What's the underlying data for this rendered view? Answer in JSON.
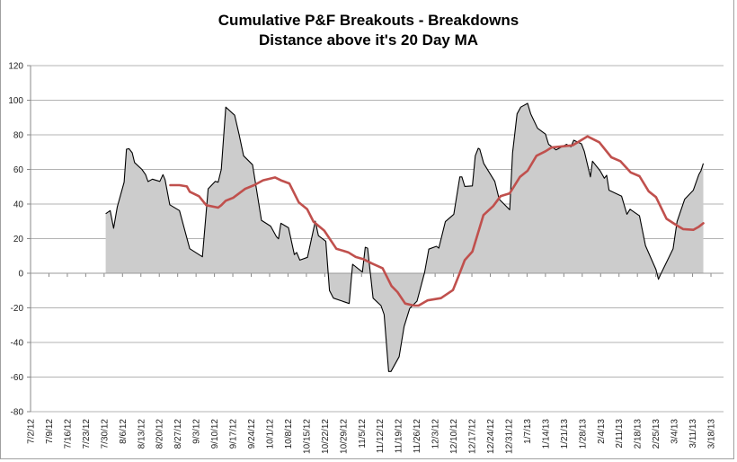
{
  "chart_data": {
    "type": "area",
    "title": "Cumulative P&F Breakouts - Breakdowns",
    "subtitle": "Distance above it's 20 Day MA",
    "xlabel": "",
    "ylabel": "",
    "x_unit": "days since 7/2/12",
    "ylim": [
      -80,
      120
    ],
    "yticks": [
      120,
      100,
      80,
      60,
      40,
      20,
      0,
      -20,
      -40,
      -60,
      -80
    ],
    "xticks": [
      "7/2/12",
      "7/9/12",
      "7/16/12",
      "7/23/12",
      "7/30/12",
      "8/6/12",
      "8/13/12",
      "8/20/12",
      "8/27/12",
      "9/3/12",
      "9/10/12",
      "9/17/12",
      "9/24/12",
      "10/1/12",
      "10/8/12",
      "10/15/12",
      "10/22/12",
      "10/29/12",
      "11/5/12",
      "11/12/12",
      "11/19/12",
      "11/26/12",
      "12/3/12",
      "12/10/12",
      "12/17/12",
      "12/24/12",
      "12/31/12",
      "1/7/13",
      "1/14/13",
      "1/21/13",
      "1/28/13",
      "2/4/13",
      "2/11/13",
      "2/18/13",
      "2/25/13",
      "3/4/13",
      "3/11/13",
      "3/18/13"
    ],
    "grid": true,
    "legend": "none",
    "series": [
      {
        "name": "Cumulative P&F Breakouts - Breakdowns",
        "type": "area",
        "color": "#cccccc",
        "line_color": "#000000",
        "points": [
          [
            28.6,
            34.4
          ],
          [
            30.3,
            36.2
          ],
          [
            31.6,
            26
          ],
          [
            33,
            38.4
          ],
          [
            35.6,
            52.6
          ],
          [
            36.5,
            71.7
          ],
          [
            37.5,
            72
          ],
          [
            38.7,
            69.6
          ],
          [
            39.6,
            64
          ],
          [
            42.4,
            60
          ],
          [
            43.8,
            57
          ],
          [
            44.7,
            53
          ],
          [
            46.4,
            54.4
          ],
          [
            49.2,
            53.1
          ],
          [
            50.4,
            57
          ],
          [
            51.2,
            54
          ],
          [
            53,
            39.6
          ],
          [
            56.7,
            36.2
          ],
          [
            60.6,
            14.2
          ],
          [
            65.4,
            9.5
          ],
          [
            67.6,
            48.8
          ],
          [
            70.3,
            53.1
          ],
          [
            71.4,
            52.6
          ],
          [
            72.6,
            60
          ],
          [
            74.3,
            96
          ],
          [
            77.7,
            91.3
          ],
          [
            79.4,
            80
          ],
          [
            81.1,
            67.9
          ],
          [
            84.5,
            62.7
          ],
          [
            87.9,
            30.6
          ],
          [
            91.4,
            27.2
          ],
          [
            93.6,
            21.1
          ],
          [
            94.4,
            19.9
          ],
          [
            95.3,
            28.9
          ],
          [
            98.2,
            26.3
          ],
          [
            100.4,
            10.8
          ],
          [
            101.3,
            12
          ],
          [
            102.5,
            7.6
          ],
          [
            105.4,
            9.2
          ],
          [
            108.4,
            30.1
          ],
          [
            109.6,
            21.7
          ],
          [
            112.4,
            18.5
          ],
          [
            113.8,
            -10
          ],
          [
            115.3,
            -14.4
          ],
          [
            121.3,
            -17.5
          ],
          [
            122.6,
            5.2
          ],
          [
            126.3,
            0.7
          ],
          [
            127.4,
            15
          ],
          [
            128.3,
            14.5
          ],
          [
            130.4,
            -14.4
          ],
          [
            133.4,
            -18.7
          ],
          [
            134.6,
            -23.9
          ],
          [
            136.3,
            -56.8
          ],
          [
            137.2,
            -56.8
          ],
          [
            140.3,
            -48.2
          ],
          [
            142.2,
            -30.8
          ],
          [
            144.3,
            -20.4
          ],
          [
            147.1,
            -16.1
          ],
          [
            150,
            0.4
          ],
          [
            151.6,
            13.9
          ],
          [
            154.5,
            15.6
          ],
          [
            155.4,
            14.5
          ],
          [
            157.9,
            29.8
          ],
          [
            161.1,
            34.1
          ],
          [
            163.4,
            55.7
          ],
          [
            164.2,
            55.7
          ],
          [
            165.3,
            50.2
          ],
          [
            168.2,
            50.5
          ],
          [
            169.3,
            67.9
          ],
          [
            170.4,
            72.2
          ],
          [
            171,
            71.7
          ],
          [
            172.5,
            63.5
          ],
          [
            176.7,
            53.1
          ],
          [
            178.4,
            42.8
          ],
          [
            182.4,
            36.7
          ],
          [
            183.5,
            69.6
          ],
          [
            185.2,
            92.1
          ],
          [
            186.6,
            96
          ],
          [
            189.2,
            98.2
          ],
          [
            190.4,
            92.1
          ],
          [
            193,
            83.8
          ],
          [
            196,
            80.4
          ],
          [
            197.2,
            74.5
          ],
          [
            200,
            71.3
          ],
          [
            204,
            74.5
          ],
          [
            205.7,
            73.1
          ],
          [
            206.8,
            76.9
          ],
          [
            209.7,
            74.8
          ],
          [
            210.8,
            70.5
          ],
          [
            213.1,
            55.7
          ],
          [
            213.9,
            64.8
          ],
          [
            216.8,
            59.2
          ],
          [
            218.4,
            54.9
          ],
          [
            219.3,
            56.6
          ],
          [
            220.2,
            48
          ],
          [
            225,
            44.5
          ],
          [
            227,
            34.1
          ],
          [
            228.2,
            37
          ],
          [
            231.8,
            33.2
          ],
          [
            234.1,
            15.9
          ],
          [
            238.1,
            2.1
          ],
          [
            239,
            -3.5
          ],
          [
            240.4,
            1.2
          ],
          [
            244.6,
            14.2
          ],
          [
            246.1,
            29.8
          ],
          [
            249,
            42.8
          ],
          [
            252.3,
            48
          ],
          [
            254.4,
            57.1
          ],
          [
            255.2,
            59.2
          ],
          [
            256.1,
            63.5
          ]
        ]
      },
      {
        "name": "20 Day MA",
        "type": "line",
        "color": "#c0504d",
        "points": [
          [
            53.2,
            50.9
          ],
          [
            56.7,
            50.9
          ],
          [
            59.5,
            50.2
          ],
          [
            60.6,
            47.1
          ],
          [
            64.1,
            44.5
          ],
          [
            66.9,
            39.3
          ],
          [
            71.4,
            37.9
          ],
          [
            72.6,
            39.3
          ],
          [
            74.3,
            41.9
          ],
          [
            77.1,
            43.6
          ],
          [
            81.7,
            48.8
          ],
          [
            85.1,
            50.9
          ],
          [
            88.5,
            53.7
          ],
          [
            93.1,
            55.4
          ],
          [
            95.3,
            53.7
          ],
          [
            98.5,
            51.9
          ],
          [
            102.1,
            41
          ],
          [
            105.3,
            37
          ],
          [
            107.7,
            29.8
          ],
          [
            111.8,
            24.6
          ],
          [
            116.4,
            14.2
          ],
          [
            120.9,
            12.1
          ],
          [
            123.8,
            9.4
          ],
          [
            126.6,
            8.2
          ],
          [
            130,
            5.6
          ],
          [
            134,
            2.9
          ],
          [
            137.4,
            -7.4
          ],
          [
            139.7,
            -10.9
          ],
          [
            142.6,
            -17.5
          ],
          [
            146,
            -18.7
          ],
          [
            147.7,
            -18.7
          ],
          [
            151.1,
            -15.7
          ],
          [
            156.2,
            -14.4
          ],
          [
            160.8,
            -9.7
          ],
          [
            163,
            -1.4
          ],
          [
            165.3,
            7.6
          ],
          [
            168.2,
            12.5
          ],
          [
            172.4,
            33.6
          ],
          [
            176.1,
            38.8
          ],
          [
            178.9,
            44.5
          ],
          [
            182.4,
            46.2
          ],
          [
            186.3,
            55.7
          ],
          [
            189.2,
            59.2
          ],
          [
            192.6,
            67.9
          ],
          [
            196,
            70.5
          ],
          [
            198.3,
            72.7
          ],
          [
            206.3,
            73.9
          ],
          [
            212,
            79.1
          ],
          [
            216.5,
            75.7
          ],
          [
            221.1,
            67
          ],
          [
            224.5,
            64.8
          ],
          [
            228.4,
            58.3
          ],
          [
            231.8,
            56.1
          ],
          [
            235.3,
            47.4
          ],
          [
            238.1,
            44
          ],
          [
            242.1,
            31.5
          ],
          [
            245.5,
            28.1
          ],
          [
            248.4,
            25.5
          ],
          [
            252.3,
            25.1
          ],
          [
            254.4,
            26.9
          ],
          [
            256.1,
            28.9
          ]
        ]
      }
    ]
  }
}
